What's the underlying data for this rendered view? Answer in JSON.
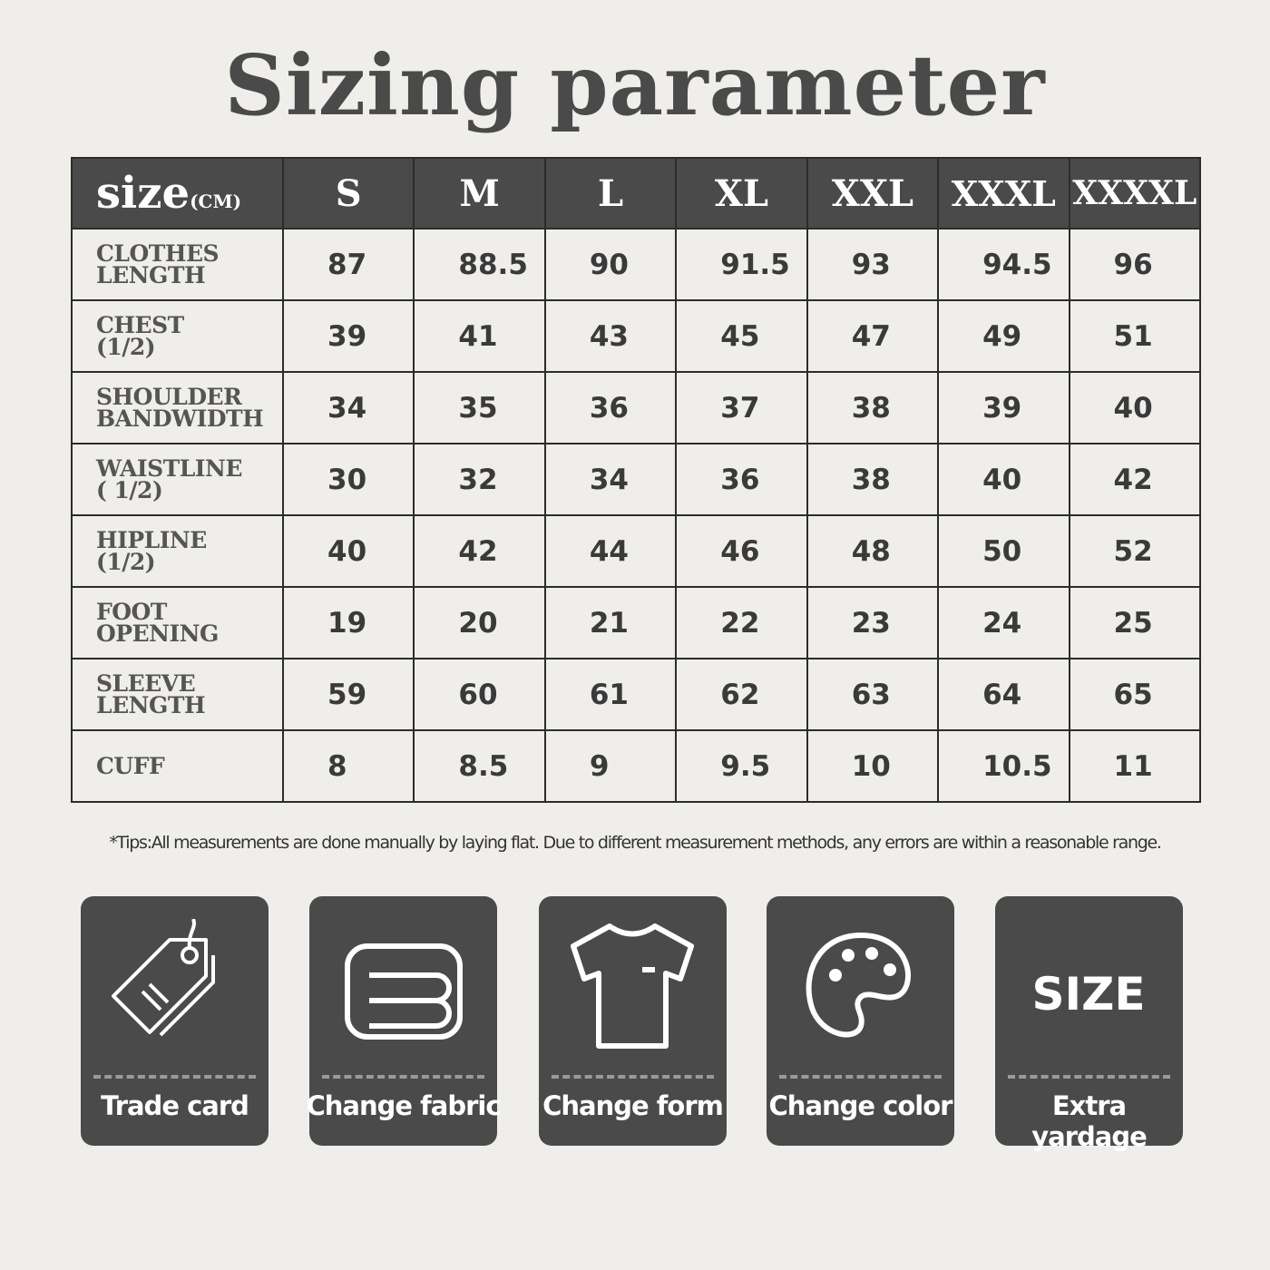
{
  "title": "Sizing parameter",
  "table": {
    "corner_main": "size",
    "corner_unit": "(CM)",
    "sizes": [
      "S",
      "M",
      "L",
      "XL",
      "XXL",
      "XXXL",
      "XXXXL"
    ],
    "rows": [
      {
        "label1": "CLOTHES",
        "label2": "LENGTH",
        "values": [
          "87",
          "88.5",
          "90",
          "91.5",
          "93",
          "94.5",
          "96"
        ]
      },
      {
        "label1": "CHEST",
        "label2": "(1/2)",
        "values": [
          "39",
          "41",
          "43",
          "45",
          "47",
          "49",
          "51"
        ]
      },
      {
        "label1": "SHOULDER",
        "label2": "BANDWIDTH",
        "values": [
          "34",
          "35",
          "36",
          "37",
          "38",
          "39",
          "40"
        ]
      },
      {
        "label1": "WAISTLINE",
        "label2": "( 1/2)",
        "values": [
          "30",
          "32",
          "34",
          "36",
          "38",
          "40",
          "42"
        ]
      },
      {
        "label1": "HIPLINE",
        "label2": "(1/2)",
        "values": [
          "40",
          "42",
          "44",
          "46",
          "48",
          "50",
          "52"
        ]
      },
      {
        "label1": "FOOT",
        "label2": "OPENING",
        "values": [
          "19",
          "20",
          "21",
          "22",
          "23",
          "24",
          "25"
        ]
      },
      {
        "label1": "SLEEVE",
        "label2": "LENGTH",
        "values": [
          "59",
          "60",
          "61",
          "62",
          "63",
          "64",
          "65"
        ]
      },
      {
        "label1": "CUFF",
        "label2": "",
        "values": [
          "8",
          "8.5",
          "9",
          "9.5",
          "10",
          "10.5",
          "11"
        ]
      }
    ]
  },
  "tip": "*Tips:All measurements are done manually by laying flat. Due to different measurement methods, any errors are within a reasonable range.",
  "cards": [
    {
      "label": "Trade card",
      "icon": "tag-icon"
    },
    {
      "label": "Change fabric",
      "icon": "fabric-icon"
    },
    {
      "label": "Change form",
      "icon": "tshirt-icon"
    },
    {
      "label": "Change color",
      "icon": "palette-icon"
    },
    {
      "label": "Extra yardage",
      "icon": "size-icon",
      "icon_text": "SIZE"
    }
  ],
  "colors": {
    "background": "#efeeea",
    "dark": "#4a4a4a"
  }
}
